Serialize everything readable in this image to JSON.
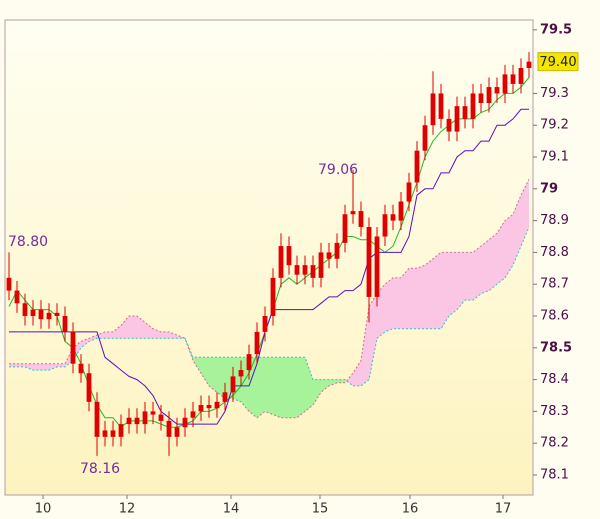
{
  "chart_data": {
    "type": "candlestick",
    "candle_color": "#e00000",
    "x": [
      0,
      1,
      2,
      3,
      4,
      5,
      6,
      7,
      8,
      9,
      10,
      11,
      12,
      13,
      14,
      15,
      16,
      17,
      18,
      19,
      20,
      21,
      22,
      23,
      24,
      25,
      26,
      27,
      28,
      29,
      30,
      31,
      32,
      33,
      34,
      35,
      36,
      37,
      38,
      39,
      40,
      41,
      42,
      43,
      44,
      45,
      46,
      47,
      48,
      49,
      50,
      51,
      52,
      53,
      54,
      55,
      56,
      57,
      58,
      59,
      60,
      61,
      62,
      63,
      64,
      65
    ],
    "open": [
      78.72,
      78.68,
      78.64,
      78.6,
      78.62,
      78.59,
      78.61,
      78.6,
      78.55,
      78.45,
      78.42,
      78.33,
      78.22,
      78.24,
      78.22,
      78.26,
      78.28,
      78.26,
      78.3,
      78.29,
      78.27,
      78.22,
      78.25,
      78.28,
      78.3,
      78.32,
      78.31,
      78.33,
      78.36,
      78.41,
      78.43,
      78.48,
      78.55,
      78.6,
      78.72,
      78.82,
      78.76,
      78.73,
      78.76,
      78.72,
      78.8,
      78.78,
      78.83,
      78.92,
      78.93,
      78.88,
      78.66,
      78.85,
      78.92,
      78.9,
      78.96,
      79.02,
      79.12,
      79.2,
      79.3,
      79.22,
      79.18,
      79.26,
      79.22,
      79.3,
      79.27,
      79.32,
      79.3,
      79.36,
      79.33,
      79.38
    ],
    "high": [
      78.8,
      78.71,
      78.67,
      78.65,
      78.65,
      78.64,
      78.64,
      78.63,
      78.58,
      78.48,
      78.45,
      78.36,
      78.27,
      78.27,
      78.29,
      78.31,
      78.31,
      78.33,
      78.33,
      78.32,
      78.3,
      78.28,
      78.31,
      78.33,
      78.35,
      78.35,
      78.36,
      78.39,
      78.44,
      78.46,
      78.51,
      78.58,
      78.63,
      78.75,
      78.86,
      78.85,
      78.79,
      78.79,
      78.79,
      78.83,
      78.83,
      78.86,
      78.95,
      79.06,
      78.96,
      78.91,
      78.88,
      78.95,
      78.95,
      78.99,
      79.05,
      79.15,
      79.23,
      79.37,
      79.33,
      79.25,
      79.29,
      79.29,
      79.33,
      79.33,
      79.35,
      79.35,
      79.39,
      79.39,
      79.41,
      79.43
    ],
    "low": [
      78.65,
      78.61,
      78.57,
      78.57,
      78.56,
      78.56,
      78.57,
      78.52,
      78.42,
      78.39,
      78.3,
      78.16,
      78.19,
      78.19,
      78.19,
      78.23,
      78.23,
      78.23,
      78.26,
      78.24,
      78.16,
      78.19,
      78.22,
      78.25,
      78.27,
      78.28,
      78.28,
      78.3,
      78.33,
      78.38,
      78.4,
      78.45,
      78.52,
      78.57,
      78.69,
      78.73,
      78.7,
      78.7,
      78.69,
      78.69,
      78.75,
      78.75,
      78.8,
      78.89,
      78.85,
      78.58,
      78.63,
      78.82,
      78.87,
      78.87,
      78.93,
      78.99,
      79.09,
      79.17,
      79.19,
      79.15,
      79.15,
      79.19,
      79.19,
      79.24,
      79.24,
      79.27,
      79.27,
      79.3,
      79.3,
      79.35
    ],
    "close": [
      78.68,
      78.64,
      78.6,
      78.62,
      78.59,
      78.61,
      78.6,
      78.55,
      78.45,
      78.42,
      78.33,
      78.22,
      78.24,
      78.22,
      78.26,
      78.28,
      78.26,
      78.3,
      78.29,
      78.27,
      78.22,
      78.25,
      78.28,
      78.3,
      78.32,
      78.31,
      78.33,
      78.36,
      78.41,
      78.43,
      78.48,
      78.55,
      78.6,
      78.72,
      78.82,
      78.76,
      78.73,
      78.76,
      78.72,
      78.8,
      78.78,
      78.83,
      78.92,
      78.93,
      78.88,
      78.66,
      78.85,
      78.92,
      78.9,
      78.96,
      79.02,
      79.12,
      79.2,
      79.3,
      79.22,
      79.18,
      79.26,
      79.22,
      79.3,
      79.27,
      79.32,
      79.3,
      79.36,
      79.33,
      79.38,
      79.4
    ],
    "lines": [
      {
        "color": "#22bb22",
        "values": [
          78.63,
          78.68,
          78.65,
          78.62,
          78.62,
          78.62,
          78.6,
          78.52,
          78.5,
          78.45,
          78.38,
          78.32,
          78.28,
          78.28,
          78.25,
          78.27,
          78.27,
          78.27,
          78.27,
          78.26,
          78.25,
          78.25,
          78.26,
          78.27,
          78.3,
          78.3,
          78.31,
          78.33,
          78.35,
          78.38,
          78.42,
          78.48,
          78.55,
          78.62,
          78.7,
          78.72,
          78.7,
          78.72,
          78.74,
          78.76,
          78.78,
          78.8,
          78.85,
          78.85,
          78.84,
          78.84,
          78.82,
          78.8,
          78.82,
          78.88,
          78.95,
          79.02,
          79.1,
          79.15,
          79.18,
          79.2,
          79.22,
          79.22,
          79.22,
          79.24,
          79.25,
          79.28,
          79.3,
          79.3,
          79.32,
          79.35
        ]
      },
      {
        "color": "#5a10c0",
        "values": [
          78.55,
          78.55,
          78.55,
          78.55,
          78.55,
          78.55,
          78.55,
          78.55,
          78.55,
          78.55,
          78.55,
          78.55,
          78.47,
          78.45,
          78.43,
          78.41,
          78.4,
          78.38,
          78.35,
          78.3,
          78.28,
          78.26,
          78.26,
          78.26,
          78.26,
          78.26,
          78.26,
          78.3,
          78.38,
          78.38,
          78.38,
          78.45,
          78.55,
          78.62,
          78.62,
          78.62,
          78.62,
          78.62,
          78.62,
          78.64,
          78.66,
          78.66,
          78.68,
          78.68,
          78.7,
          78.78,
          78.8,
          78.8,
          78.8,
          78.8,
          78.85,
          78.98,
          79.0,
          79.0,
          79.05,
          79.05,
          79.1,
          79.12,
          79.12,
          79.15,
          79.15,
          79.2,
          79.2,
          79.22,
          79.25,
          79.25
        ]
      }
    ],
    "cloud": {
      "span_a": {
        "color": "#30c0d0",
        "values": [
          78.44,
          78.44,
          78.44,
          78.43,
          78.43,
          78.43,
          78.44,
          78.44,
          78.46,
          78.5,
          78.52,
          78.53,
          78.53,
          78.53,
          78.53,
          78.53,
          78.53,
          78.53,
          78.53,
          78.53,
          78.53,
          78.53,
          78.53,
          78.47,
          78.47,
          78.47,
          78.47,
          78.47,
          78.47,
          78.47,
          78.47,
          78.47,
          78.47,
          78.47,
          78.47,
          78.47,
          78.47,
          78.47,
          78.4,
          78.4,
          78.4,
          78.4,
          78.4,
          78.38,
          78.38,
          78.4,
          78.53,
          78.55,
          78.56,
          78.56,
          78.56,
          78.56,
          78.56,
          78.56,
          78.56,
          78.6,
          78.62,
          78.65,
          78.65,
          78.67,
          78.68,
          78.7,
          78.72,
          78.76,
          78.82,
          78.88
        ]
      },
      "span_b": {
        "color": "#d06a9a",
        "values": [
          78.45,
          78.45,
          78.45,
          78.45,
          78.45,
          78.45,
          78.45,
          78.45,
          78.5,
          78.52,
          78.53,
          78.54,
          78.55,
          78.55,
          78.57,
          78.6,
          78.6,
          78.58,
          78.56,
          78.55,
          78.55,
          78.54,
          78.53,
          78.46,
          78.42,
          78.38,
          78.36,
          78.34,
          78.34,
          78.33,
          78.3,
          78.28,
          78.3,
          78.29,
          78.28,
          78.28,
          78.28,
          78.3,
          78.32,
          78.36,
          78.38,
          78.39,
          78.39,
          78.42,
          78.46,
          78.63,
          78.67,
          78.7,
          78.72,
          78.72,
          78.75,
          78.75,
          78.76,
          78.78,
          78.8,
          78.8,
          78.8,
          78.8,
          78.8,
          78.82,
          78.84,
          78.86,
          78.9,
          78.92,
          78.98,
          79.03
        ]
      },
      "bull_fill": "#a6f39a",
      "bear_fill": "#fbc6e4"
    },
    "annotations": [
      "78.80",
      "79.06",
      "78.16"
    ],
    "last_price": {
      "value": 79.4,
      "label": "79.40"
    },
    "xlim": [
      -0.5,
      65.5
    ],
    "ylim": [
      78.037,
      79.531
    ],
    "xticks": [
      {
        "value": 4.25,
        "label": "10"
      },
      {
        "value": 14.75,
        "label": "12"
      },
      {
        "value": 27.75,
        "label": "14"
      },
      {
        "value": 38.875,
        "label": "15"
      },
      {
        "value": 50.125,
        "label": "16"
      },
      {
        "value": 61.75,
        "label": "17"
      }
    ],
    "yticks": [
      79.5,
      79.3,
      79.2,
      79.1,
      79,
      78.9,
      78.8,
      78.7,
      78.6,
      78.5,
      78.4,
      78.3,
      78.2,
      78.1
    ]
  }
}
